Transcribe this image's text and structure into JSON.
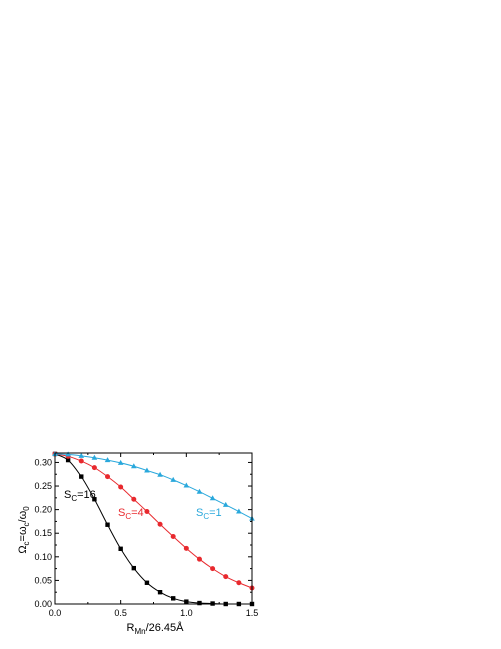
{
  "chart_data": {
    "type": "line",
    "xlabel": {
      "main": "R",
      "sub": "Mn",
      "rest": "/26.45Å"
    },
    "ylabel": {
      "p1": "Ω",
      "s1": "c",
      "p2": "=ω",
      "s2": "c",
      "p3": "/ω",
      "s3": "0"
    },
    "xlim": [
      0.0,
      1.5
    ],
    "ylim": [
      0.0,
      0.32
    ],
    "xticks": [
      "0.0",
      "0.5",
      "1.0",
      "1.5"
    ],
    "yticks": [
      "0.00",
      "0.05",
      "0.10",
      "0.15",
      "0.20",
      "0.25",
      "0.30"
    ],
    "grid": false,
    "series": [
      {
        "name": {
          "main": "S",
          "sub": "C",
          "rest": "=16"
        },
        "color": "#000000",
        "marker": "square",
        "x": [
          0.0,
          0.1,
          0.2,
          0.3,
          0.4,
          0.5,
          0.6,
          0.7,
          0.8,
          0.9,
          1.0,
          1.1,
          1.2,
          1.3,
          1.4,
          1.5
        ],
        "y": [
          0.318,
          0.305,
          0.27,
          0.222,
          0.168,
          0.117,
          0.076,
          0.045,
          0.025,
          0.012,
          0.005,
          0.002,
          0.001,
          0.0,
          0.0,
          0.0
        ]
      },
      {
        "name": {
          "main": "S",
          "sub": "C",
          "rest": "=4"
        },
        "color": "#e8292e",
        "marker": "circle",
        "x": [
          0.0,
          0.1,
          0.2,
          0.3,
          0.4,
          0.5,
          0.6,
          0.7,
          0.8,
          0.9,
          1.0,
          1.1,
          1.2,
          1.3,
          1.4,
          1.5
        ],
        "y": [
          0.318,
          0.313,
          0.303,
          0.289,
          0.27,
          0.248,
          0.222,
          0.196,
          0.169,
          0.143,
          0.118,
          0.095,
          0.075,
          0.058,
          0.045,
          0.034
        ]
      },
      {
        "name": {
          "main": "S",
          "sub": "C",
          "rest": "=1"
        },
        "color": "#29a8dc",
        "marker": "triangle",
        "x": [
          0.0,
          0.1,
          0.2,
          0.3,
          0.4,
          0.5,
          0.6,
          0.7,
          0.8,
          0.9,
          1.0,
          1.1,
          1.2,
          1.3,
          1.4,
          1.5
        ],
        "y": [
          0.318,
          0.317,
          0.314,
          0.31,
          0.305,
          0.299,
          0.292,
          0.283,
          0.274,
          0.263,
          0.251,
          0.238,
          0.224,
          0.21,
          0.196,
          0.181
        ]
      }
    ]
  }
}
